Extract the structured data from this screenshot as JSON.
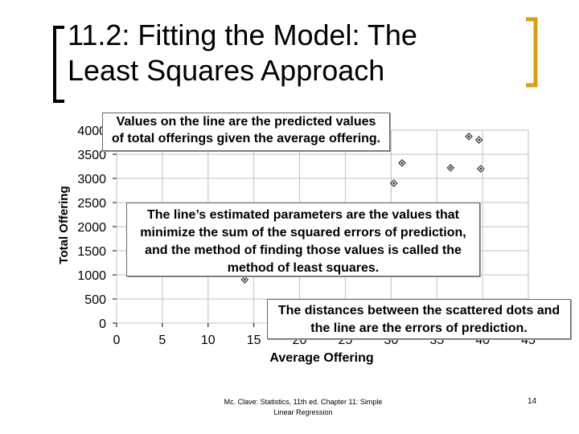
{
  "slide": {
    "title_line1": "11.2: Fitting the Model: The",
    "title_line2": "Least Squares Approach",
    "footer_line1": "Mc. Clave: Statistics, 11th ed. Chapter 11: Simple",
    "footer_line2": "Linear Regression",
    "page_number": "14"
  },
  "callouts": {
    "top_line1": "Values on the line are the predicted values",
    "top_line2": "of total offerings given the average offering.",
    "mid_line1": "The line’s estimated parameters are the values that",
    "mid_line2": "minimize the sum of the squared errors of prediction,",
    "mid_line3": "and the method of finding those values is called the",
    "mid_line4": "method of least squares.",
    "bot_line1": "The distances between the scattered dots and",
    "bot_line2_pre": "the line are the ",
    "bot_line2_emph": "errors of prediction",
    "bot_line2_post": "."
  },
  "chart_data": {
    "type": "scatter",
    "xlabel": "Average Offering",
    "ylabel": "Total Offering",
    "x_ticks": [
      "0",
      "5",
      "10",
      "15",
      "20",
      "25",
      "30",
      "35",
      "40",
      "45"
    ],
    "y_ticks": [
      "0",
      "500",
      "1000",
      "1500",
      "2000",
      "2500",
      "3000",
      "3500",
      "4000"
    ],
    "xlim": [
      0,
      45
    ],
    "ylim": [
      0,
      4000
    ],
    "grid": true,
    "points": [
      {
        "x": 14,
        "y": 900
      },
      {
        "x": 30.3,
        "y": 2900
      },
      {
        "x": 31.2,
        "y": 3320
      },
      {
        "x": 36.5,
        "y": 3220
      },
      {
        "x": 38.5,
        "y": 3870
      },
      {
        "x": 39.6,
        "y": 3800
      },
      {
        "x": 39.8,
        "y": 3200
      }
    ],
    "colors": {
      "marker": "#333333",
      "grid": "#c0c0c0",
      "bracket": "#d4a017"
    }
  }
}
